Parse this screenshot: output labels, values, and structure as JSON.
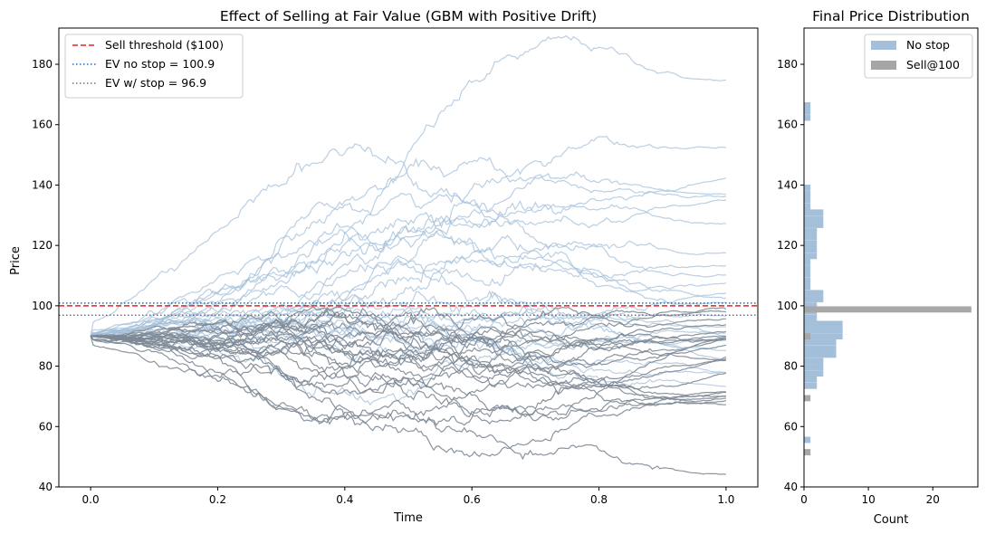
{
  "chart_data": [
    {
      "type": "line",
      "title": "Effect of Selling at Fair Value (GBM with Positive Drift)",
      "xlabel": "Time",
      "ylabel": "Price",
      "xlim": [
        -0.05,
        1.05
      ],
      "ylim": [
        40,
        192
      ],
      "xticks": [
        0.0,
        0.2,
        0.4,
        0.6,
        0.8,
        1.0
      ],
      "xtick_labels": [
        "0.0",
        "0.2",
        "0.4",
        "0.6",
        "0.8",
        "1.0"
      ],
      "yticks": [
        40,
        60,
        80,
        100,
        120,
        140,
        160,
        180
      ],
      "ytick_labels": [
        "40",
        "60",
        "80",
        "100",
        "120",
        "140",
        "160",
        "180"
      ],
      "grid": false,
      "legend_location": "upper-left",
      "start_price": 90,
      "series": [
        {
          "name": "Sell threshold ($100)",
          "kind": "hline",
          "y": 100,
          "color": "#e8211e",
          "dash": "dashed"
        },
        {
          "name": "EV no stop = 100.9",
          "kind": "hline",
          "y": 100.9,
          "color": "#1f6fbf",
          "dash": "dotted"
        },
        {
          "name": "EV w/ stop = 96.9",
          "kind": "hline",
          "y": 96.9,
          "color": "#6b7380",
          "dash": "dotted"
        }
      ],
      "paths": {
        "description_of_groups": [
          "no stop paths",
          "sell at 100 paths"
        ],
        "no_stop_color": "#a3bfd9",
        "sell_color": "#7d8895",
        "no_stop_final_values": [
          168,
          146,
          142,
          135,
          133,
          130,
          123,
          116,
          113,
          110,
          107,
          104,
          101,
          99,
          95,
          93,
          91,
          88,
          85,
          82,
          80,
          78,
          76,
          73
        ],
        "no_stop_peaks": [
          185,
          148,
          145,
          136,
          140,
          133,
          130,
          120,
          125,
          116,
          114,
          110,
          108,
          106,
          102,
          101,
          100,
          98,
          96,
          95,
          94,
          93,
          92,
          91
        ],
        "sell_final_values": [
          100,
          99,
          98,
          97,
          96,
          94,
          93,
          92,
          91,
          90,
          90,
          89,
          88,
          86,
          82,
          80,
          79,
          78,
          75,
          73,
          70,
          68,
          51
        ],
        "sell_troughs": [
          85,
          84,
          83,
          82,
          80,
          79,
          78,
          77,
          76,
          75,
          74,
          73,
          72,
          71,
          70,
          69,
          68,
          67,
          66,
          65,
          64,
          63,
          47
        ]
      }
    },
    {
      "type": "bar",
      "orientation": "horizontal",
      "title": "Final Price Distribution",
      "xlabel": "Count",
      "ylabel": "",
      "xlim": [
        0,
        27
      ],
      "ylim": [
        40,
        192
      ],
      "xticks": [
        0,
        10,
        20
      ],
      "xtick_labels": [
        "0",
        "10",
        "20"
      ],
      "yticks": [
        40,
        60,
        80,
        100,
        120,
        140,
        160,
        180
      ],
      "ytick_labels": [
        "40",
        "60",
        "80",
        "100",
        "120",
        "140",
        "160",
        "180"
      ],
      "legend_location": "upper-right",
      "bin_width": 2.05,
      "series": [
        {
          "name": "No stop",
          "color": "#a3bfd9",
          "bins": [
            {
              "y": 51.5,
              "count": 1
            },
            {
              "y": 55.6,
              "count": 1
            },
            {
              "y": 73.5,
              "count": 2
            },
            {
              "y": 75.6,
              "count": 2
            },
            {
              "y": 77.6,
              "count": 3
            },
            {
              "y": 79.7,
              "count": 3
            },
            {
              "y": 81.7,
              "count": 3
            },
            {
              "y": 83.8,
              "count": 5
            },
            {
              "y": 85.8,
              "count": 5
            },
            {
              "y": 87.9,
              "count": 5
            },
            {
              "y": 89.9,
              "count": 6
            },
            {
              "y": 92.0,
              "count": 6
            },
            {
              "y": 94.0,
              "count": 6
            },
            {
              "y": 96.0,
              "count": 2
            },
            {
              "y": 98.1,
              "count": 2
            },
            {
              "y": 100.1,
              "count": 2
            },
            {
              "y": 102.2,
              "count": 3
            },
            {
              "y": 104.2,
              "count": 3
            },
            {
              "y": 106.3,
              "count": 1
            },
            {
              "y": 108.3,
              "count": 1
            },
            {
              "y": 110.4,
              "count": 1
            },
            {
              "y": 112.4,
              "count": 1
            },
            {
              "y": 114.5,
              "count": 1
            },
            {
              "y": 116.5,
              "count": 2
            },
            {
              "y": 118.6,
              "count": 2
            },
            {
              "y": 120.6,
              "count": 2
            },
            {
              "y": 122.7,
              "count": 2
            },
            {
              "y": 124.7,
              "count": 2
            },
            {
              "y": 126.8,
              "count": 3
            },
            {
              "y": 128.8,
              "count": 3
            },
            {
              "y": 130.9,
              "count": 3
            },
            {
              "y": 132.9,
              "count": 1
            },
            {
              "y": 135.0,
              "count": 1
            },
            {
              "y": 137.0,
              "count": 1
            },
            {
              "y": 139.1,
              "count": 1
            },
            {
              "y": 162.3,
              "count": 1
            },
            {
              "y": 164.4,
              "count": 1
            },
            {
              "y": 166.4,
              "count": 1
            }
          ]
        },
        {
          "name": "Sell@100",
          "color": "#a6a6a6",
          "bins": [
            {
              "y": 51.5,
              "count": 1
            },
            {
              "y": 69.4,
              "count": 1
            },
            {
              "y": 89.9,
              "count": 1
            },
            {
              "y": 98.8,
              "count": 26
            }
          ]
        }
      ]
    }
  ]
}
